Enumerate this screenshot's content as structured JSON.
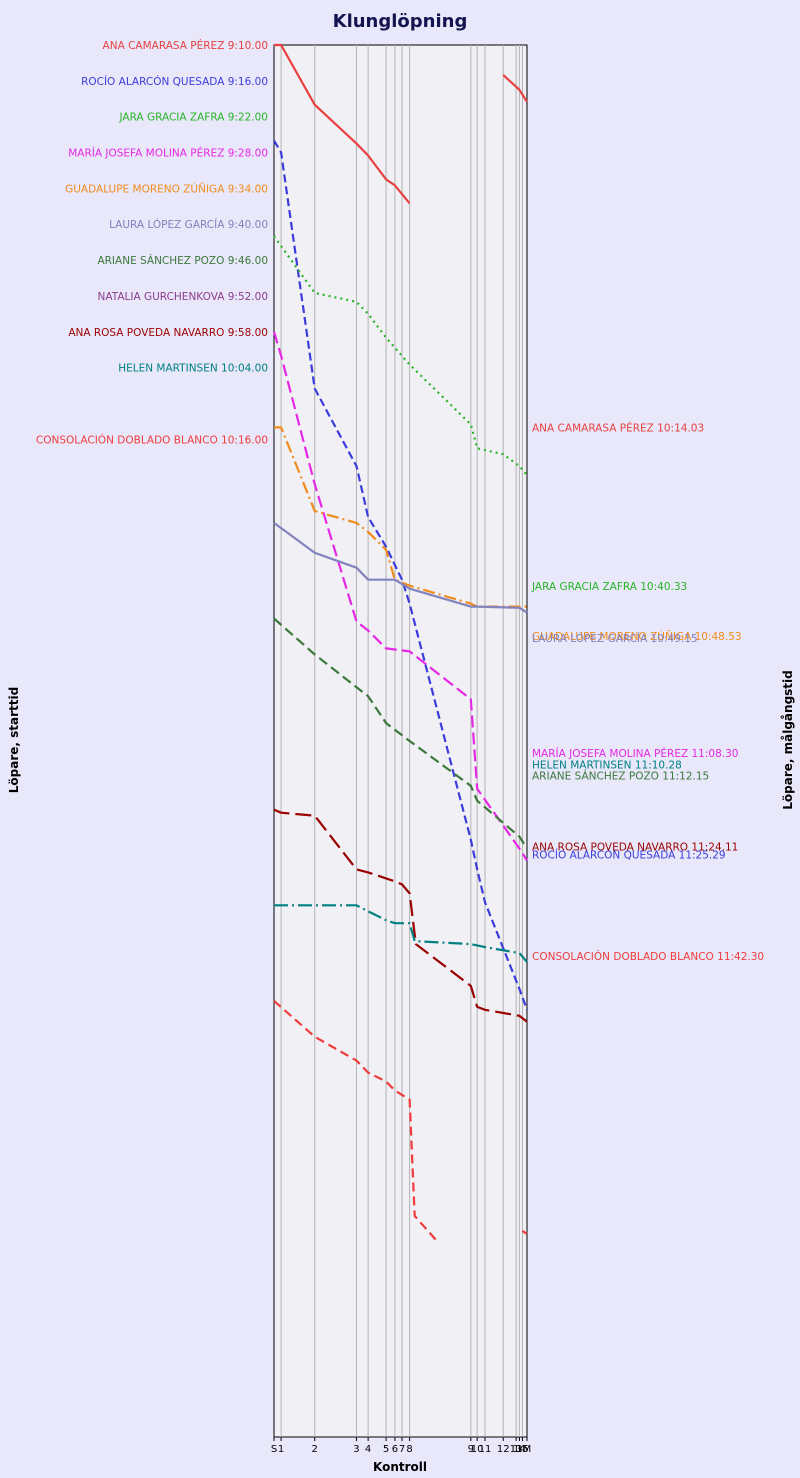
{
  "chart_data": {
    "type": "line",
    "title": "Klunglöpning",
    "xlabel": "Kontroll",
    "ylabel_left": "Löpare, starttid",
    "ylabel_right": "Löpare, målgångstid",
    "controls": [
      "S",
      "1",
      "2",
      "3",
      "4",
      "5",
      "6",
      "7",
      "8",
      "9",
      "10",
      "11",
      "12",
      "13",
      "14",
      "15",
      "M"
    ],
    "control_tick_labels": [
      "S",
      "1",
      "2",
      "3",
      "4",
      "5",
      "6",
      "7",
      "8",
      "9",
      "10",
      "11",
      "12",
      "13",
      "14",
      "15",
      "M"
    ],
    "control_positions": [
      0.0,
      0.028,
      0.161,
      0.326,
      0.372,
      0.443,
      0.478,
      0.506,
      0.536,
      0.778,
      0.803,
      0.834,
      0.906,
      0.957,
      0.97,
      0.982,
      1.0
    ],
    "time_range_minutes": [
      550,
      783
    ],
    "series": [
      {
        "name": "ANA CAMARASA PÉREZ",
        "start_label": "ANA CAMARASA PÉREZ 9:10.00",
        "finish_label": "ANA CAMARASA PÉREZ 10:14.03",
        "color": "#e84040",
        "dash": "solid",
        "finish_min": 614.05,
        "segments": [
          [
            [
              0,
              550
            ],
            [
              0.028,
              550.0
            ],
            [
              0.161,
              560.0
            ],
            [
              0.326,
              566.5
            ],
            [
              0.372,
              568.5
            ],
            [
              0.443,
              572.5
            ],
            [
              0.478,
              573.5
            ],
            [
              0.536,
              576.5
            ]
          ],
          [
            [
              0.906,
              555.0
            ],
            [
              0.97,
              557.5
            ],
            [
              1.0,
              559.5
            ]
          ]
        ]
      },
      {
        "name": "ROCÍO ALARCÓN QUESADA",
        "start_label": "ROCÍO ALARCÓN QUESADA 9:16.00",
        "finish_label": "ROCÍO ALARCÓN QUESADA 11:25.29",
        "color": "#3c3cdc",
        "dash": "8,4",
        "finish_min": 685.5,
        "segments": [
          [
            [
              0,
              566
            ],
            [
              0.028,
              568.0
            ],
            [
              0.161,
              607.5
            ],
            [
              0.326,
              620.5
            ],
            [
              0.372,
              629.0
            ],
            [
              0.443,
              634.0
            ],
            [
              0.506,
              639.5
            ],
            [
              0.536,
              643.5
            ],
            [
              0.778,
              683.0
            ],
            [
              0.803,
              688.0
            ],
            [
              0.834,
              693.5
            ],
            [
              0.97,
              708.0
            ],
            [
              1.0,
              711.5
            ]
          ]
        ]
      },
      {
        "name": "JARA GRACIA ZAFRA",
        "start_label": "JARA GRACIA ZAFRA 9:22.00",
        "finish_label": "JARA GRACIA ZAFRA 10:40.33",
        "color": "#28b428",
        "dash": "2,4",
        "finish_min": 640.55,
        "segments": [
          [
            [
              0,
              582
            ],
            [
              0.161,
              591.5
            ],
            [
              0.326,
              593.0
            ],
            [
              0.372,
              595.0
            ],
            [
              0.443,
              599.0
            ],
            [
              0.536,
              603.5
            ],
            [
              0.778,
              613.5
            ],
            [
              0.803,
              617.5
            ],
            [
              0.906,
              618.5
            ],
            [
              0.97,
              620.5
            ],
            [
              1.0,
              622.0
            ]
          ]
        ]
      },
      {
        "name": "MARÍA JOSEFA MOLINA PÉREZ",
        "start_label": "MARÍA JOSEFA MOLINA PÉREZ 9:28.00",
        "finish_label": "MARÍA JOSEFA MOLINA PÉREZ 11:08.30",
        "color": "#e628e6",
        "dash": "12,5",
        "finish_min": 668.5,
        "segments": [
          [
            [
              0,
              598
            ],
            [
              0.028,
              602.0
            ],
            [
              0.161,
              623.5
            ],
            [
              0.326,
              646.5
            ],
            [
              0.372,
              648.0
            ],
            [
              0.443,
              651.0
            ],
            [
              0.536,
              651.5
            ],
            [
              0.778,
              659.5
            ],
            [
              0.803,
              674.5
            ],
            [
              0.97,
              684.5
            ],
            [
              1.0,
              686.5
            ]
          ]
        ]
      },
      {
        "name": "GUADALUPE MORENO ZÚÑIGA",
        "start_label": "GUADALUPE MORENO ZÚÑIGA 9:34.00",
        "finish_label": "GUADALUPE MORENO ZÚÑIGA 10:48.53",
        "color": "#f08c1e",
        "dash": "12,4,2,4",
        "finish_min": 648.9,
        "segments": [
          [
            [
              0,
              614
            ],
            [
              0.028,
              614.0
            ],
            [
              0.161,
              628.0
            ],
            [
              0.326,
              630.0
            ],
            [
              0.372,
              631.5
            ],
            [
              0.443,
              634.5
            ],
            [
              0.478,
              639.5
            ],
            [
              0.536,
              640.5
            ],
            [
              0.778,
              643.5
            ],
            [
              0.803,
              644.0
            ],
            [
              0.97,
              644.0
            ],
            [
              1.0,
              644.0
            ]
          ]
        ]
      },
      {
        "name": "LAURA LÓPEZ GARCÍA",
        "start_label": "LAURA LÓPEZ GARCÍA 9:40.00",
        "finish_label": "LAURA LÓPEZ GARCÍA 10:49.15",
        "color": "#8282be",
        "dash": "solid",
        "finish_min": 649.25,
        "segments": [
          [
            [
              0,
              630
            ],
            [
              0.161,
              635.0
            ],
            [
              0.326,
              637.5
            ],
            [
              0.372,
              639.5
            ],
            [
              0.443,
              639.5
            ],
            [
              0.478,
              639.5
            ],
            [
              0.536,
              641.0
            ],
            [
              0.778,
              644.0
            ],
            [
              0.803,
              644.0
            ],
            [
              0.97,
              644.2
            ],
            [
              1.0,
              645.0
            ]
          ]
        ]
      },
      {
        "name": "ARIANE SÁNCHEZ POZO",
        "start_label": "ARIANE SÁNCHEZ POZO 9:46.00",
        "finish_label": "ARIANE SÁNCHEZ POZO 11:12.15",
        "color": "#3c783c",
        "dash": "10,5",
        "finish_min": 672.25,
        "segments": [
          [
            [
              0,
              646
            ],
            [
              0.161,
              652.0
            ],
            [
              0.326,
              657.5
            ],
            [
              0.372,
              659.0
            ],
            [
              0.443,
              663.5
            ],
            [
              0.536,
              666.5
            ],
            [
              0.778,
              674.0
            ],
            [
              0.803,
              676.5
            ],
            [
              0.97,
              682.5
            ],
            [
              1.0,
              684.5
            ]
          ]
        ]
      },
      {
        "name": "NATALIA GURCHENKOVA",
        "start_label": "NATALIA GURCHENKOVA 9:52.00",
        "finish_label": "",
        "color": "#8c3c8c",
        "dash": "solid",
        "finish_min": null,
        "segments": []
      },
      {
        "name": "ANA ROSA POVEDA NAVARRO",
        "start_label": "ANA ROSA POVEDA NAVARRO 9:58.00",
        "finish_label": "ANA ROSA POVEDA NAVARRO 11:24.11",
        "color": "#9b0000",
        "dash": "16,6",
        "finish_min": 684.2,
        "segments": [
          [
            [
              0,
              678
            ],
            [
              0.028,
              678.5
            ],
            [
              0.161,
              679.0
            ],
            [
              0.326,
              688.0
            ],
            [
              0.372,
              688.5
            ],
            [
              0.443,
              689.5
            ],
            [
              0.478,
              690.0
            ],
            [
              0.506,
              690.5
            ],
            [
              0.536,
              692.0
            ],
            [
              0.561,
              700.5
            ],
            [
              0.778,
              707.5
            ],
            [
              0.803,
              711.0
            ],
            [
              0.834,
              711.5
            ],
            [
              0.97,
              712.5
            ],
            [
              1.0,
              713.5
            ]
          ]
        ]
      },
      {
        "name": "HELEN MARTINSEN",
        "start_label": "HELEN MARTINSEN 10:04.00",
        "finish_label": "HELEN MARTINSEN 11:10.28",
        "color": "#008080",
        "dash": "14,4,2,4",
        "finish_min": 670.45,
        "segments": [
          [
            [
              0,
              694
            ],
            [
              0.028,
              694.0
            ],
            [
              0.161,
              694.0
            ],
            [
              0.326,
              694.0
            ],
            [
              0.372,
              695.0
            ],
            [
              0.443,
              696.5
            ],
            [
              0.478,
              697.0
            ],
            [
              0.536,
              697.0
            ],
            [
              0.556,
              700.0
            ],
            [
              0.778,
              700.5
            ],
            [
              0.834,
              701.0
            ],
            [
              0.97,
              702.0
            ],
            [
              1.0,
              703.5
            ]
          ]
        ]
      },
      {
        "name": "CONSOLACIÓN DOBLADO BLANCO",
        "start_label": "CONSOLACIÓN DOBLADO BLANCO 10:16.00",
        "finish_label": "CONSOLACIÓN DOBLADO BLANCO 11:42.30",
        "color": "#f03c3c",
        "dash": "9,5",
        "finish_min": 702.5,
        "segments": [
          [
            [
              0,
              710
            ],
            [
              0.161,
              716.0
            ],
            [
              0.326,
              720.0
            ],
            [
              0.372,
              722.0
            ],
            [
              0.443,
              723.5
            ],
            [
              0.478,
              725.0
            ],
            [
              0.536,
              726.5
            ],
            [
              0.556,
              746.0
            ],
            [
              0.64,
              750.0
            ]
          ],
          [
            [
              0.982,
              748.5
            ],
            [
              1.0,
              749.0
            ]
          ]
        ]
      }
    ]
  }
}
